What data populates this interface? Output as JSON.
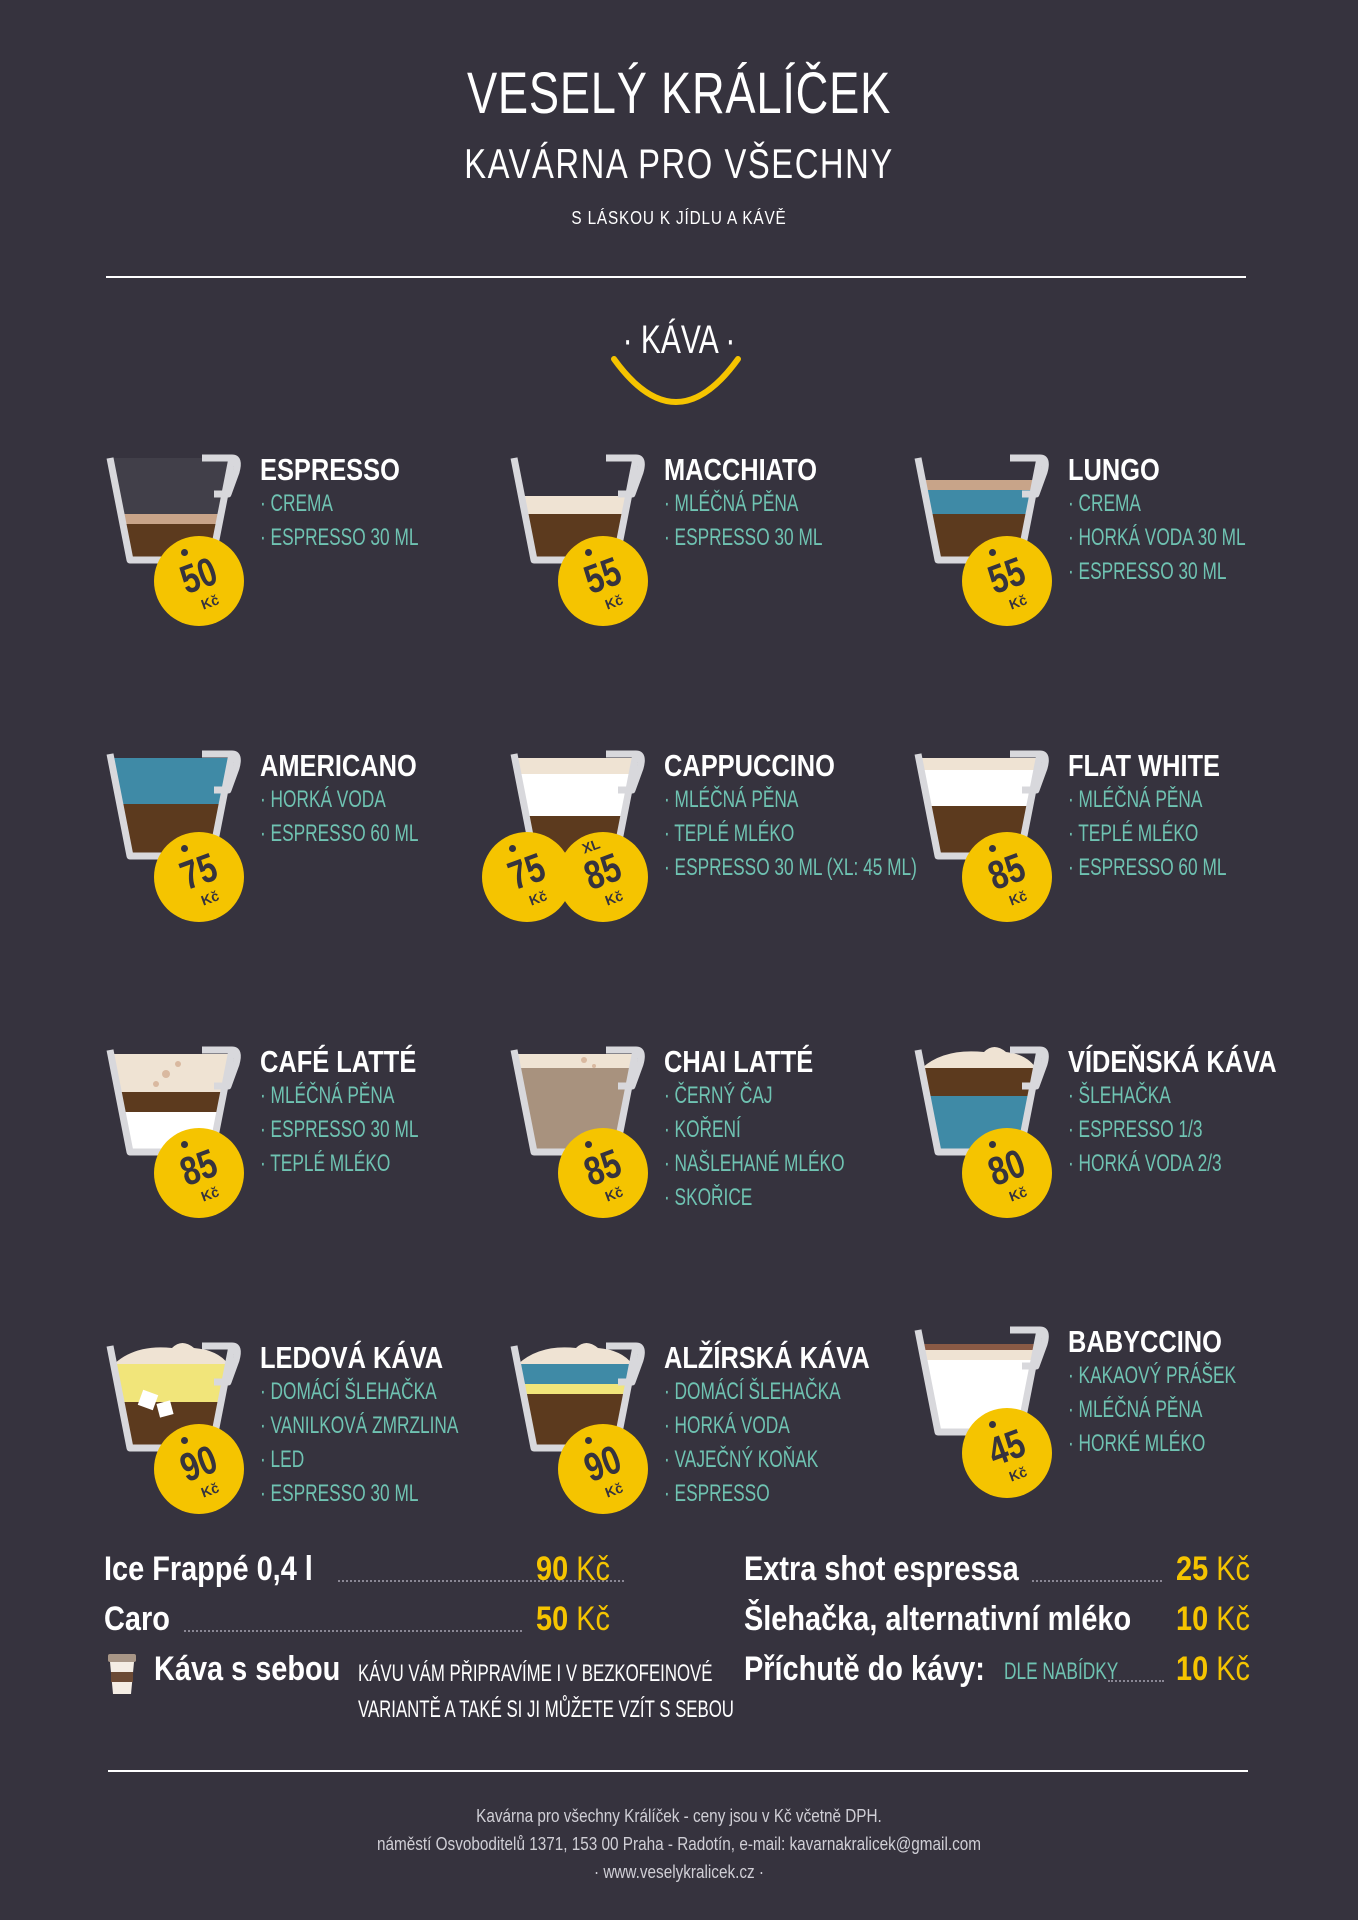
{
  "header": {
    "title": "Veselý Králíček",
    "subtitle": "Kavárna pro všechny",
    "tagline": "s láskou k jídlu a kávě"
  },
  "section": {
    "title": "· Káva ·"
  },
  "currency": "Kč",
  "colors": {
    "background": "#36333e",
    "accent": "#f5c400",
    "ingredient": "#6fc3b2",
    "text": "#ffffff"
  },
  "items": [
    {
      "name": "Espresso",
      "price": "50",
      "ingredients": [
        "· Crema",
        "· Espresso 30 ml"
      ]
    },
    {
      "name": "Macchiato",
      "price": "55",
      "ingredients": [
        "· Mléčná pěna",
        "· Espresso 30 ml"
      ]
    },
    {
      "name": "Lungo",
      "price": "55",
      "ingredients": [
        "· Crema",
        "· Horká voda 30 ml",
        "· Espresso 30 ml"
      ]
    },
    {
      "name": "Americano",
      "price": "75",
      "ingredients": [
        "· Horká voda",
        "· Espresso 60 ml"
      ]
    },
    {
      "name": "Cappuccino",
      "price": "75",
      "price_xl_label": "XL",
      "price_xl": "85",
      "ingredients": [
        "· Mléčná pěna",
        "· Teplé mléko",
        "· Espresso 30 ml (XL: 45 ml)"
      ]
    },
    {
      "name": "Flat White",
      "price": "85",
      "ingredients": [
        "· Mléčná pěna",
        "· Teplé mléko",
        "· Espresso 60 ml"
      ]
    },
    {
      "name": "Café Latté",
      "price": "85",
      "ingredients": [
        "· Mléčná pěna",
        "· Espresso 30 ml",
        "· Teplé mléko"
      ]
    },
    {
      "name": "Chai Latté",
      "price": "85",
      "ingredients": [
        "· Černý čaj",
        "· Koření",
        "· Našlehané mléko",
        "· Skořice"
      ]
    },
    {
      "name": "Vídeňská káva",
      "price": "80",
      "ingredients": [
        "· Šlehačka",
        "· Espresso 1/3",
        "· Horká voda 2/3"
      ]
    },
    {
      "name": "Ledová káva",
      "price": "90",
      "ingredients": [
        "· Domácí šlehačka",
        "· Vanilková zmrzlina",
        "· Led",
        "· Espresso 30 ml"
      ]
    },
    {
      "name": "Alžírská káva",
      "price": "90",
      "ingredients": [
        "· Domácí šlehačka",
        "· Horká voda",
        "· Vaječný koňak",
        "· Espresso"
      ]
    },
    {
      "name": "Babyccino",
      "price": "45",
      "ingredients": [
        "· Kakaový prášek",
        "· Mléčná pěna",
        "· Horké mléko"
      ]
    }
  ],
  "extras_left": [
    {
      "label": "Ice Frappé 0,4 l",
      "price": "90"
    },
    {
      "label": "Caro",
      "price": "50"
    }
  ],
  "takeaway": {
    "label": "Káva s sebou",
    "note_line1": "Kávu vám připravíme i v bezkofeinové",
    "note_line2": "variantě a také si ji můžete vzít s sebou"
  },
  "extras_right": [
    {
      "label": "Extra shot espressa",
      "price": "25"
    },
    {
      "label": "Šlehačka, alternativní mléko",
      "price": "10"
    },
    {
      "label": "Příchutě do kávy:",
      "note": "dle nabídky",
      "price": "10"
    }
  ],
  "footer": {
    "line1": "Kavárna pro všechny Králíček - ceny jsou v Kč včetně DPH.",
    "line2": "náměstí Osvoboditelů 1371, 153 00 Praha - Radotín, e-mail: kavarnakralicek@gmail.com",
    "line3": "· www.veselykralicek.cz ·"
  }
}
